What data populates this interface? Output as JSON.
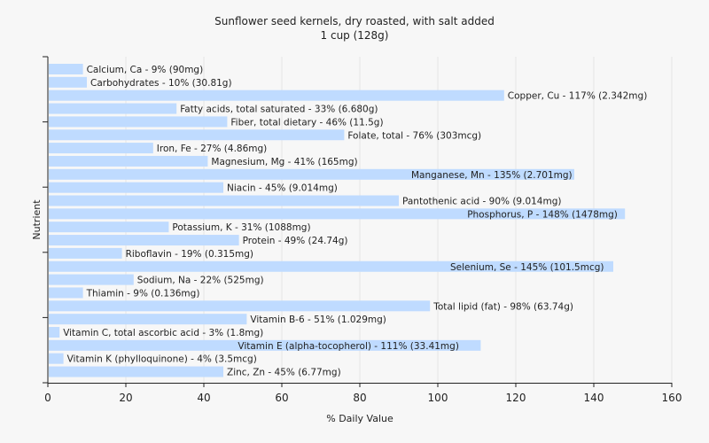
{
  "title_line1": "Sunflower seed kernels, dry roasted, with salt added",
  "title_line2": "1 cup (128g)",
  "colors": {
    "bar": "#bfdbff",
    "grid": "#e4e4e4",
    "axis": "#222222",
    "background": "#f7f7f7"
  },
  "chart_data": {
    "type": "bar",
    "orientation": "horizontal",
    "xlabel": "% Daily Value",
    "ylabel": "Nutrient",
    "xlim": [
      0,
      160
    ],
    "xticks": [
      0,
      20,
      40,
      60,
      80,
      100,
      120,
      140,
      160
    ],
    "grid": "vertical",
    "bars": [
      {
        "category": "Calcium, Ca",
        "value": 9,
        "label": "Calcium, Ca - 9% (90mg)"
      },
      {
        "category": "Carbohydrates",
        "value": 10,
        "label": "Carbohydrates - 10% (30.81g)"
      },
      {
        "category": "Copper, Cu",
        "value": 117,
        "label": "Copper, Cu - 117% (2.342mg)"
      },
      {
        "category": "Fatty acids, total saturated",
        "value": 33,
        "label": "Fatty acids, total saturated - 33% (6.680g)"
      },
      {
        "category": "Fiber, total dietary",
        "value": 46,
        "label": "Fiber, total dietary - 46% (11.5g)"
      },
      {
        "category": "Folate, total",
        "value": 76,
        "label": "Folate, total - 76% (303mcg)"
      },
      {
        "category": "Iron, Fe",
        "value": 27,
        "label": "Iron, Fe - 27% (4.86mg)"
      },
      {
        "category": "Magnesium, Mg",
        "value": 41,
        "label": "Magnesium, Mg - 41% (165mg)"
      },
      {
        "category": "Manganese, Mn",
        "value": 135,
        "label": "Manganese, Mn - 135% (2.701mg)"
      },
      {
        "category": "Niacin",
        "value": 45,
        "label": "Niacin - 45% (9.014mg)"
      },
      {
        "category": "Pantothenic acid",
        "value": 90,
        "label": "Pantothenic acid - 90% (9.014mg)"
      },
      {
        "category": "Phosphorus, P",
        "value": 148,
        "label": "Phosphorus, P - 148% (1478mg)"
      },
      {
        "category": "Potassium, K",
        "value": 31,
        "label": "Potassium, K - 31% (1088mg)"
      },
      {
        "category": "Protein",
        "value": 49,
        "label": "Protein - 49% (24.74g)"
      },
      {
        "category": "Riboflavin",
        "value": 19,
        "label": "Riboflavin - 19% (0.315mg)"
      },
      {
        "category": "Selenium, Se",
        "value": 145,
        "label": "Selenium, Se - 145% (101.5mcg)"
      },
      {
        "category": "Sodium, Na",
        "value": 22,
        "label": "Sodium, Na - 22% (525mg)"
      },
      {
        "category": "Thiamin",
        "value": 9,
        "label": "Thiamin - 9% (0.136mg)"
      },
      {
        "category": "Total lipid (fat)",
        "value": 98,
        "label": "Total lipid (fat) - 98% (63.74g)"
      },
      {
        "category": "Vitamin B-6",
        "value": 51,
        "label": "Vitamin B-6 - 51% (1.029mg)"
      },
      {
        "category": "Vitamin C, total ascorbic acid",
        "value": 3,
        "label": "Vitamin C, total ascorbic acid - 3% (1.8mg)"
      },
      {
        "category": "Vitamin E (alpha-tocopherol)",
        "value": 111,
        "label": "Vitamin E (alpha-tocopherol) - 111% (33.41mg)"
      },
      {
        "category": "Vitamin K (phylloquinone)",
        "value": 4,
        "label": "Vitamin K (phylloquinone) - 4% (3.5mcg)"
      },
      {
        "category": "Zinc, Zn",
        "value": 45,
        "label": "Zinc, Zn - 45% (6.77mg)"
      }
    ]
  }
}
